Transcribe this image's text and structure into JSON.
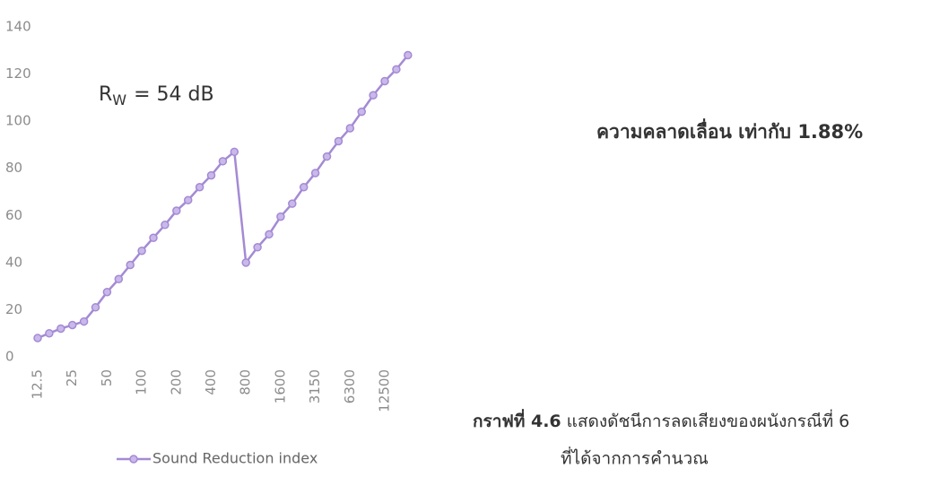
{
  "chart_data": {
    "type": "line",
    "categories": [
      "12.5",
      null,
      null,
      "25",
      null,
      null,
      "50",
      null,
      null,
      "100",
      null,
      null,
      "200",
      null,
      null,
      "400",
      null,
      null,
      "800",
      null,
      null,
      "1600",
      null,
      null,
      "3150",
      null,
      null,
      "6300",
      null,
      null,
      "12500",
      null,
      null
    ],
    "series": [
      {
        "name": "Sound Reduction index",
        "color": "#a48ad4",
        "values": [
          8,
          10,
          12,
          13.5,
          15,
          21,
          27.5,
          33,
          39,
          45,
          50.5,
          56,
          62,
          66.5,
          72,
          77,
          83,
          87,
          40,
          46.5,
          52,
          59.5,
          65,
          72,
          78,
          85,
          91.5,
          97,
          104,
          111,
          117,
          122,
          128
        ]
      }
    ],
    "ylim": [
      0,
      140
    ],
    "yticks": [
      0,
      20,
      40,
      60,
      80,
      100,
      120,
      140
    ],
    "grid": false,
    "legend": "bottom-left",
    "annotations": {
      "rating_symbol": "R",
      "rating_subscript": "W",
      "rating_text": "= 54 dB",
      "error_text": "ความคลาดเลื่อน เท่ากับ 1.88%"
    }
  },
  "caption": {
    "label": "กราฟที่ 4.6",
    "text": "แสดงดัชนีการลดเสียงของผนังกรณีที่ 6",
    "line2": "ที่ได้จากการคำนวณ"
  }
}
